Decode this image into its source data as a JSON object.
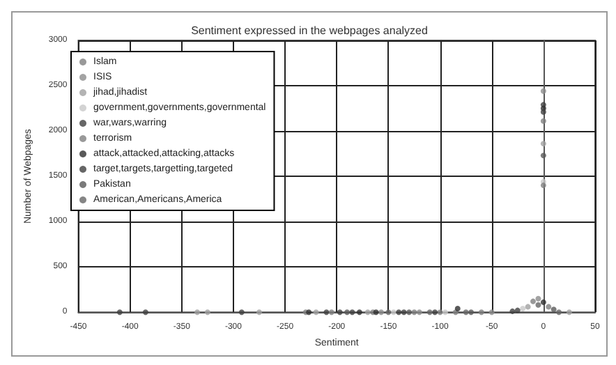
{
  "chart_data": {
    "type": "scatter",
    "title": "Sentiment expressed in the webpages analyzed",
    "xlabel": "Sentiment",
    "ylabel": "Number of Webpages",
    "xlim": [
      -450,
      50
    ],
    "xticks": [
      -450,
      -400,
      -350,
      -300,
      -250,
      -200,
      -150,
      -100,
      -50,
      0,
      50
    ],
    "ylim": [
      0,
      3000
    ],
    "yticks": [
      0,
      500,
      1000,
      1500,
      2000,
      2500,
      3000
    ],
    "grid": true,
    "legend": "top left",
    "marker": "circle",
    "series": [
      {
        "name": "Islam",
        "color": "#7f7f7f",
        "x": [
          -230,
          -100,
          -60,
          -10,
          0
        ],
        "values": [
          0,
          0,
          0,
          120,
          2110
        ]
      },
      {
        "name": "ISIS",
        "color": "#8c8c8c",
        "x": [
          -157,
          -120,
          -50,
          -5,
          0
        ],
        "values": [
          0,
          0,
          0,
          150,
          2440
        ]
      },
      {
        "name": "jihad,jihadist",
        "color": "#a0a0a0",
        "x": [
          -335,
          -325,
          -275,
          -220,
          -170,
          -15,
          0,
          25
        ],
        "values": [
          0,
          0,
          0,
          0,
          0,
          60,
          1860,
          0
        ]
      },
      {
        "name": "government,governments,governmental",
        "color": "#c8c8c8",
        "x": [
          -145,
          -95,
          -20,
          0
        ],
        "values": [
          0,
          0,
          40,
          1440
        ]
      },
      {
        "name": "war,wars,warring",
        "color": "#404040",
        "x": [
          -410,
          -385,
          -292,
          -210,
          -185,
          -140,
          -25,
          0
        ],
        "values": [
          0,
          0,
          0,
          0,
          0,
          0,
          20,
          2290
        ]
      },
      {
        "name": "terrorism",
        "color": "#808080",
        "x": [
          -205,
          -165,
          -125,
          -85,
          5,
          0
        ],
        "values": [
          0,
          0,
          0,
          0,
          60,
          1400
        ]
      },
      {
        "name": "attack,attacked,attacking,attacks",
        "color": "#303030",
        "x": [
          -227,
          -178,
          -162,
          -83,
          0,
          0
        ],
        "values": [
          0,
          0,
          0,
          40,
          110,
          2250
        ]
      },
      {
        "name": "target,targets,targetting,targeted",
        "color": "#404040",
        "x": [
          -197,
          -135,
          -105,
          -30,
          0
        ],
        "values": [
          0,
          0,
          0,
          10,
          2210
        ]
      },
      {
        "name": "Pakistan",
        "color": "#595959",
        "x": [
          -190,
          -130,
          -70,
          10,
          0
        ],
        "values": [
          0,
          0,
          0,
          30,
          1730
        ]
      },
      {
        "name": "American,Americans,America",
        "color": "#666666",
        "x": [
          -150,
          -110,
          -75,
          -5,
          15
        ],
        "values": [
          0,
          0,
          0,
          80,
          0
        ]
      }
    ]
  }
}
